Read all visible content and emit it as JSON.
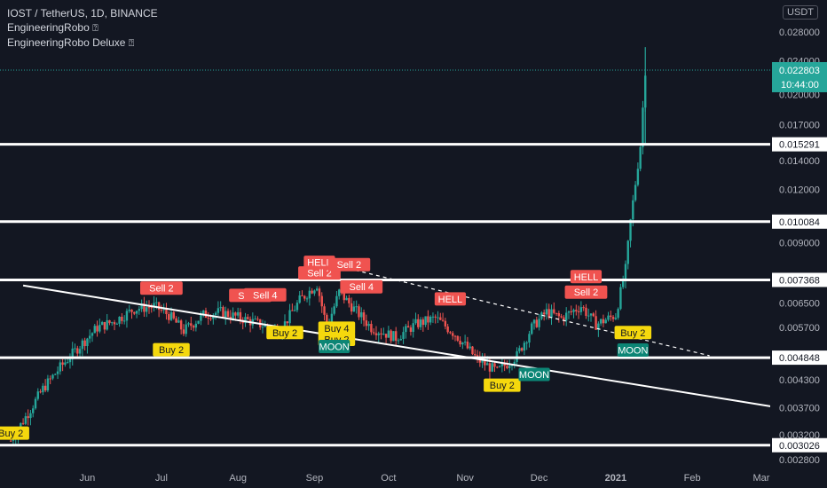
{
  "header": {
    "symbol_line": "IOST / TetherUS, 1D, BINANCE",
    "indicators": [
      {
        "name": "EngineeringRobo",
        "badge": "⍰"
      },
      {
        "name": "EngineeringRobo Deluxe",
        "badge": "⍰"
      }
    ],
    "scale_button": "USDT"
  },
  "colors": {
    "background": "#131722",
    "up": "#26a69a",
    "down": "#ef5350",
    "sell_label": "#f05350",
    "buy_label": "#f5d80d",
    "moon_label": "#0c8575",
    "last_price": "#26a69a",
    "line": "#ffffff"
  },
  "chart_data": {
    "type": "candlestick",
    "x_ticks": [
      "Jun",
      "Jul",
      "Aug",
      "Sep",
      "Oct",
      "Nov",
      "Dec",
      "2021",
      "Feb",
      "Mar"
    ],
    "y_ticks": [
      0.0028,
      0.0032,
      0.0037,
      0.0043,
      0.0057,
      0.0065,
      0.009,
      0.012,
      0.014,
      0.017,
      0.02,
      0.024,
      0.028
    ],
    "ylim": [
      0.0027,
      0.034
    ],
    "log_scale": true,
    "grid": false,
    "horizontal_levels": [
      {
        "value": "0.015291",
        "price": 0.015291
      },
      {
        "value": "0.010084",
        "price": 0.010084
      },
      {
        "value": "0.007368",
        "price": 0.007368
      },
      {
        "value": "0.004848",
        "price": 0.004848
      },
      {
        "value": "0.003026",
        "price": 0.003026
      }
    ],
    "last_price": {
      "value": "0.022803",
      "price": 0.022803,
      "countdown": "10:44:00"
    },
    "trend_lines": [
      {
        "style": "solid",
        "from": {
          "date": "2020-05-06",
          "price": 0.00715
        },
        "to": {
          "date": "2021-03-06",
          "price": 0.00372
        }
      },
      {
        "style": "dashed",
        "from": {
          "date": "2020-09-12",
          "price": 0.0079
        },
        "to": {
          "date": "2021-02-08",
          "price": 0.0049
        }
      }
    ],
    "signals": [
      {
        "text": "Sell 2",
        "kind": "sell",
        "date": "2020-07-01",
        "price": 0.00705
      },
      {
        "text": "Sell 2",
        "kind": "sell",
        "date": "2020-08-06",
        "price": 0.00678
      },
      {
        "text": "Sell 4",
        "kind": "sell",
        "date": "2020-08-12",
        "price": 0.0068
      },
      {
        "text": "HELL",
        "kind": "sell",
        "date": "2020-09-03",
        "price": 0.0081
      },
      {
        "text": "Sell 2",
        "kind": "sell",
        "date": "2020-09-03",
        "price": 0.00765
      },
      {
        "text": "Sell 2",
        "kind": "sell",
        "date": "2020-09-15",
        "price": 0.008
      },
      {
        "text": "Sell 4",
        "kind": "sell",
        "date": "2020-09-20",
        "price": 0.0071
      },
      {
        "text": "HELL",
        "kind": "sell",
        "date": "2020-10-26",
        "price": 0.00665
      },
      {
        "text": "HELL",
        "kind": "sell",
        "date": "2020-12-20",
        "price": 0.0075
      },
      {
        "text": "Sell 2",
        "kind": "sell",
        "date": "2020-12-20",
        "price": 0.0069
      },
      {
        "text": "Buy 2",
        "kind": "buy",
        "date": "2020-05-01",
        "price": 0.00323
      },
      {
        "text": "Buy 2",
        "kind": "buy",
        "date": "2020-07-05",
        "price": 0.00506
      },
      {
        "text": "Buy 2",
        "kind": "buy",
        "date": "2020-08-20",
        "price": 0.00555
      },
      {
        "text": "Buy 4",
        "kind": "buy",
        "date": "2020-09-10",
        "price": 0.00568
      },
      {
        "text": "Buy 2",
        "kind": "buy",
        "date": "2020-09-10",
        "price": 0.00535
      },
      {
        "text": "Buy 2",
        "kind": "buy",
        "date": "2020-11-16",
        "price": 0.00418
      },
      {
        "text": "Buy 2",
        "kind": "buy",
        "date": "2021-01-08",
        "price": 0.00555
      },
      {
        "text": "MOON",
        "kind": "moon",
        "date": "2020-09-09",
        "price": 0.00515
      },
      {
        "text": "MOON",
        "kind": "moon",
        "date": "2020-11-29",
        "price": 0.00443
      },
      {
        "text": "MOON",
        "kind": "moon",
        "date": "2021-01-08",
        "price": 0.00505
      }
    ],
    "series": [
      {
        "date": "2020-05-01",
        "price": 0.0031
      },
      {
        "date": "2020-05-08",
        "price": 0.0036
      },
      {
        "date": "2020-05-14",
        "price": 0.0041
      },
      {
        "date": "2020-05-21",
        "price": 0.0046
      },
      {
        "date": "2020-05-28",
        "price": 0.0051
      },
      {
        "date": "2020-06-05",
        "price": 0.0057
      },
      {
        "date": "2020-06-12",
        "price": 0.0059
      },
      {
        "date": "2020-06-20",
        "price": 0.0063
      },
      {
        "date": "2020-06-28",
        "price": 0.0064
      },
      {
        "date": "2020-07-04",
        "price": 0.0061
      },
      {
        "date": "2020-07-10",
        "price": 0.0056
      },
      {
        "date": "2020-07-18",
        "price": 0.0061
      },
      {
        "date": "2020-07-25",
        "price": 0.0062
      },
      {
        "date": "2020-08-02",
        "price": 0.006
      },
      {
        "date": "2020-08-10",
        "price": 0.0058
      },
      {
        "date": "2020-08-18",
        "price": 0.0056
      },
      {
        "date": "2020-08-26",
        "price": 0.0066
      },
      {
        "date": "2020-09-02",
        "price": 0.0072
      },
      {
        "date": "2020-09-06",
        "price": 0.0057
      },
      {
        "date": "2020-09-11",
        "price": 0.0069
      },
      {
        "date": "2020-09-16",
        "price": 0.0064
      },
      {
        "date": "2020-09-24",
        "price": 0.0057
      },
      {
        "date": "2020-10-04",
        "price": 0.0054
      },
      {
        "date": "2020-10-12",
        "price": 0.0058
      },
      {
        "date": "2020-10-20",
        "price": 0.006
      },
      {
        "date": "2020-10-28",
        "price": 0.0055
      },
      {
        "date": "2020-11-06",
        "price": 0.0048
      },
      {
        "date": "2020-11-14",
        "price": 0.0045
      },
      {
        "date": "2020-11-22",
        "price": 0.0049
      },
      {
        "date": "2020-11-28",
        "price": 0.0057
      },
      {
        "date": "2020-12-04",
        "price": 0.0062
      },
      {
        "date": "2020-12-10",
        "price": 0.006
      },
      {
        "date": "2020-12-18",
        "price": 0.0064
      },
      {
        "date": "2020-12-24",
        "price": 0.0058
      },
      {
        "date": "2021-01-01",
        "price": 0.0061
      },
      {
        "date": "2021-01-05",
        "price": 0.0078
      },
      {
        "date": "2021-01-07",
        "price": 0.0101
      },
      {
        "date": "2021-01-09",
        "price": 0.0124
      },
      {
        "date": "2021-01-11",
        "price": 0.0152
      },
      {
        "date": "2021-01-13",
        "price": 0.0228
      }
    ]
  }
}
